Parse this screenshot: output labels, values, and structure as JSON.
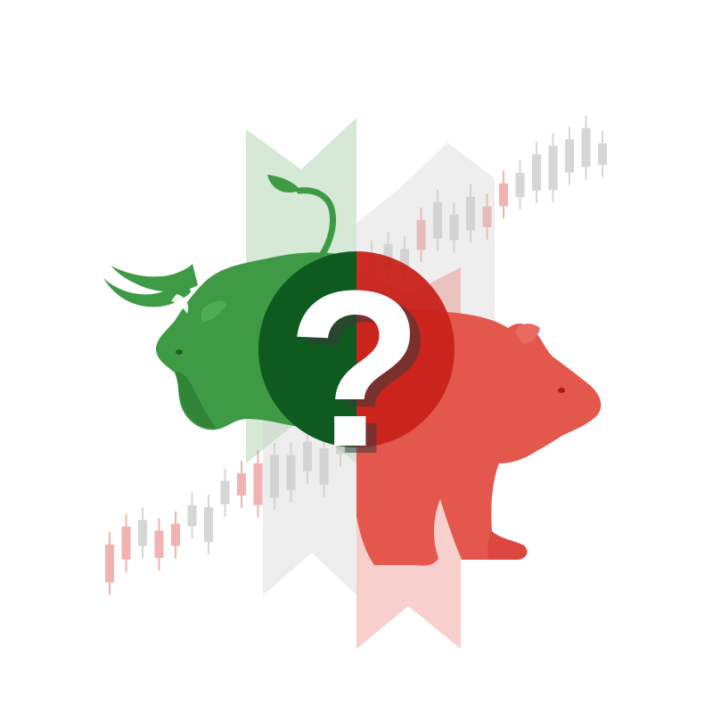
{
  "illustration": {
    "subject": "bull-vs-bear-market",
    "symbol": "?",
    "colors": {
      "background": "#ffffff",
      "bull_green": "#3f9a46",
      "bull_green_dark": "#0f5a1e",
      "bull_green_light": "#cfe6cf",
      "bear_red": "#e4574d",
      "bear_red_dark": "#c8221a",
      "bear_red_light": "#f6c9c6",
      "candle_gray": "#d6d6d6",
      "candle_pink": "#f2b3b0",
      "question_white": "#ffffff",
      "question_shadow": "#3a3a3a"
    },
    "icons": [
      "bull-icon",
      "bear-icon",
      "question-mark-icon",
      "candlestick-chart-icon"
    ]
  }
}
